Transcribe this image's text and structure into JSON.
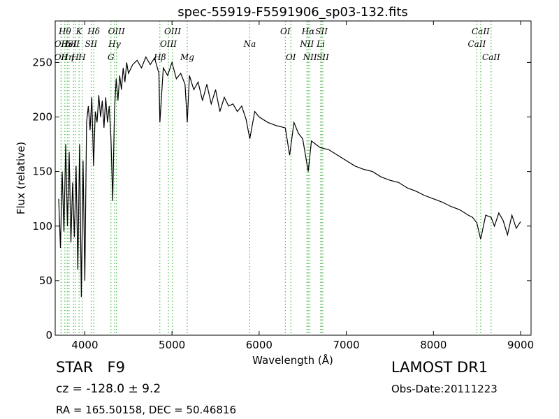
{
  "chart_data": {
    "type": "line",
    "title": "spec-55919-F5591906_sp03-132.fits",
    "xlabel": "Wavelength (Å)",
    "ylabel": "Flux (relative)",
    "xlim": [
      3660,
      9120
    ],
    "ylim": [
      0,
      288
    ],
    "xticks": [
      4000,
      5000,
      6000,
      7000,
      8000,
      9000
    ],
    "yticks": [
      0,
      50,
      100,
      150,
      200,
      250
    ],
    "grid": false,
    "line_color": "#000000",
    "marker_color": "#22aa22",
    "series": [
      {
        "x": [
          3700,
          3720,
          3740,
          3760,
          3780,
          3800,
          3820,
          3840,
          3860,
          3880,
          3900,
          3920,
          3940,
          3960,
          3980,
          4000,
          4020,
          4040,
          4060,
          4080,
          4100,
          4120,
          4140,
          4160,
          4180,
          4200,
          4220,
          4240,
          4260,
          4280,
          4300,
          4320,
          4340,
          4360,
          4380,
          4400,
          4420,
          4440,
          4460,
          4480,
          4500,
          4550,
          4600,
          4650,
          4700,
          4750,
          4800,
          4850,
          4861,
          4900,
          4950,
          5000,
          5050,
          5100,
          5150,
          5175,
          5200,
          5250,
          5300,
          5350,
          5400,
          5450,
          5500,
          5550,
          5600,
          5650,
          5700,
          5750,
          5800,
          5850,
          5893,
          5950,
          6000,
          6100,
          6200,
          6300,
          6350,
          6400,
          6450,
          6500,
          6563,
          6600,
          6700,
          6800,
          6900,
          7000,
          7100,
          7200,
          7300,
          7400,
          7500,
          7600,
          7700,
          7800,
          7900,
          8000,
          8100,
          8200,
          8300,
          8400,
          8450,
          8498,
          8542,
          8600,
          8662,
          8700,
          8750,
          8800,
          8850,
          8900,
          8950,
          9000
        ],
        "y": [
          125,
          80,
          150,
          95,
          175,
          100,
          168,
          85,
          140,
          90,
          155,
          60,
          175,
          35,
          160,
          50,
          195,
          210,
          188,
          218,
          155,
          205,
          195,
          220,
          200,
          215,
          190,
          218,
          195,
          210,
          180,
          123,
          205,
          235,
          215,
          238,
          225,
          245,
          232,
          250,
          240,
          248,
          252,
          245,
          255,
          248,
          254,
          240,
          195,
          245,
          238,
          250,
          235,
          240,
          230,
          195,
          238,
          225,
          232,
          215,
          230,
          212,
          225,
          205,
          218,
          210,
          212,
          205,
          210,
          198,
          180,
          205,
          200,
          195,
          192,
          190,
          165,
          195,
          185,
          180,
          150,
          178,
          172,
          170,
          165,
          160,
          155,
          152,
          150,
          145,
          142,
          140,
          135,
          132,
          128,
          125,
          122,
          118,
          115,
          110,
          108,
          103,
          88,
          110,
          108,
          100,
          112,
          105,
          92,
          110,
          98,
          104
        ]
      }
    ],
    "spectral_lines": [
      {
        "x": 3727,
        "label": "OII",
        "row": 2
      },
      {
        "x": 3727,
        "label": "OII",
        "row": 3
      },
      {
        "x": 3771,
        "label": "Hθ",
        "row": 1
      },
      {
        "x": 3798,
        "label": "Hη",
        "row": 3
      },
      {
        "x": 3819,
        "label": "HeI",
        "row": 2
      },
      {
        "x": 3870,
        "label": "SII",
        "row": 2
      },
      {
        "x": 3889,
        "label": "H",
        "row": 3
      },
      {
        "x": 3934,
        "label": "K",
        "row": 1
      },
      {
        "x": 3969,
        "label": "H",
        "row": 3
      },
      {
        "x": 4102,
        "label": "Hδ",
        "row": 1
      },
      {
        "x": 4072,
        "label": "SII",
        "row": 2
      },
      {
        "x": 4300,
        "label": "G",
        "row": 3
      },
      {
        "x": 4341,
        "label": "Hγ",
        "row": 2
      },
      {
        "x": 4363,
        "label": "OIII",
        "row": 1
      },
      {
        "x": 4861,
        "label": "Hβ",
        "row": 3
      },
      {
        "x": 4959,
        "label": "OIII",
        "row": 2
      },
      {
        "x": 5007,
        "label": "OIII",
        "row": 1
      },
      {
        "x": 5175,
        "label": "Mg",
        "row": 3
      },
      {
        "x": 5893,
        "label": "Na",
        "row": 2
      },
      {
        "x": 6300,
        "label": "OI",
        "row": 1
      },
      {
        "x": 6364,
        "label": "OI",
        "row": 3
      },
      {
        "x": 6548,
        "label": "NII",
        "row": 2
      },
      {
        "x": 6563,
        "label": "Hα",
        "row": 1
      },
      {
        "x": 6583,
        "label": "NII",
        "row": 3
      },
      {
        "x": 6707,
        "label": "Li",
        "row": 2
      },
      {
        "x": 6716,
        "label": "SII",
        "row": 1
      },
      {
        "x": 6731,
        "label": "SII",
        "row": 3
      },
      {
        "x": 8498,
        "label": "CaII",
        "row": 2
      },
      {
        "x": 8542,
        "label": "CaII",
        "row": 1
      },
      {
        "x": 8662,
        "label": "CaII",
        "row": 3
      }
    ]
  },
  "info": {
    "class": "STAR",
    "subclass": "F9",
    "cz": "cz = -128.0 ± 9.2",
    "radec": "RA = 165.50158, DEC = 50.46816",
    "survey": "LAMOST DR1",
    "obsdate": "Obs-Date:20111223"
  }
}
